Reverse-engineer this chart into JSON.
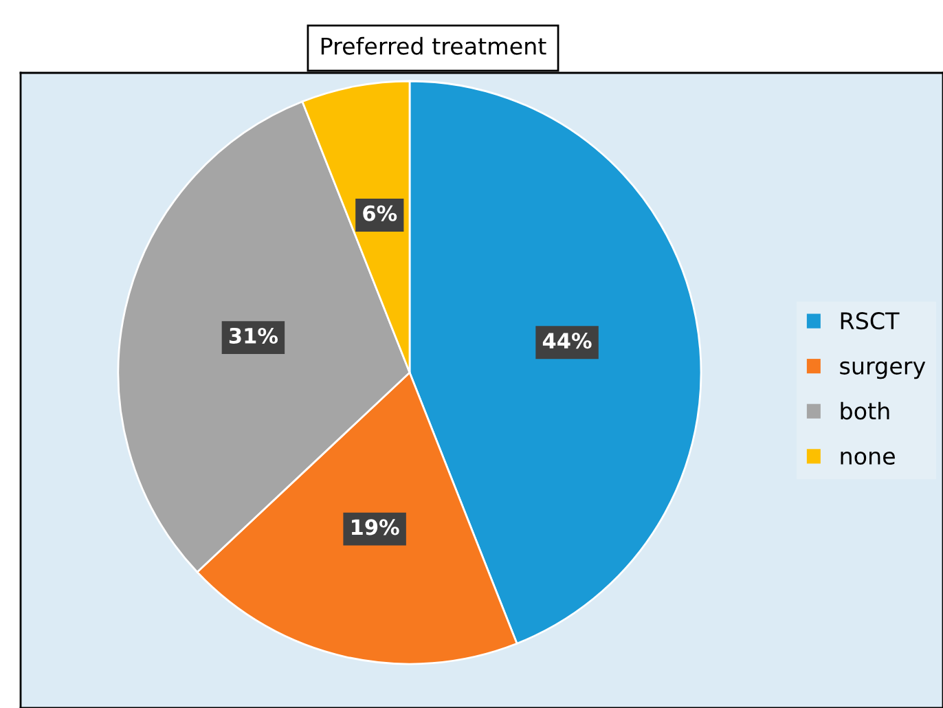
{
  "chart_data": {
    "type": "pie",
    "title": "Preferred treatment",
    "categories": [
      "RSCT",
      "surgery",
      "both",
      "none"
    ],
    "values": [
      44,
      19,
      31,
      6
    ],
    "value_labels": [
      "44%",
      "19%",
      "31%",
      "6%"
    ],
    "colors": [
      "#1a9ad6",
      "#f7791f",
      "#a5a5a5",
      "#fdbf00"
    ],
    "legend": "right"
  }
}
